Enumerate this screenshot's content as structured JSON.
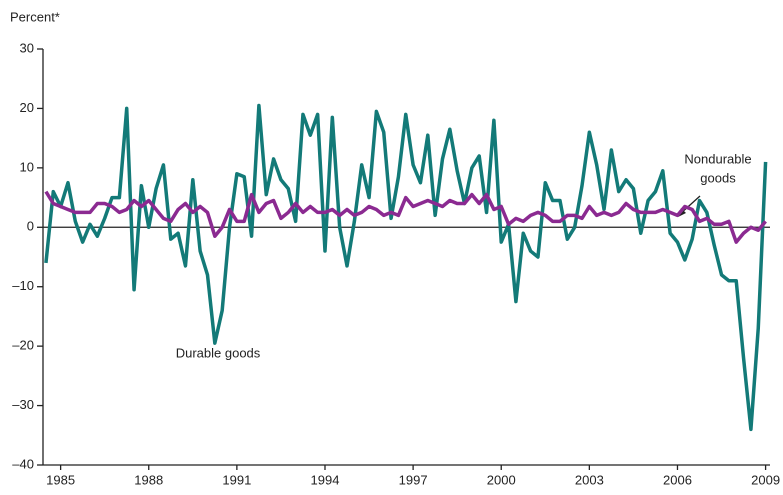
{
  "chart_data": {
    "type": "line",
    "y_label": "Percent*",
    "xlim": [
      1984.4,
      2009.15
    ],
    "xticks": [
      1985,
      1988,
      1991,
      1994,
      1997,
      2000,
      2003,
      2006,
      2009
    ],
    "ylim": [
      -40,
      30
    ],
    "yticks": [
      {
        "value": -40,
        "label": "–40"
      },
      {
        "value": -30,
        "label": "–30"
      },
      {
        "value": -20,
        "label": "–20"
      },
      {
        "value": -10,
        "label": "–10"
      },
      0,
      10,
      20,
      30
    ],
    "x": [
      1984.5,
      1984.75,
      1985,
      1985.25,
      1985.5,
      1985.75,
      1986,
      1986.25,
      1986.5,
      1986.75,
      1987,
      1987.25,
      1987.5,
      1987.75,
      1988,
      1988.25,
      1988.5,
      1988.75,
      1989,
      1989.25,
      1989.5,
      1989.75,
      1990,
      1990.25,
      1990.5,
      1990.75,
      1991,
      1991.25,
      1991.5,
      1991.75,
      1992,
      1992.25,
      1992.5,
      1992.75,
      1993,
      1993.25,
      1993.5,
      1993.75,
      1994,
      1994.25,
      1994.5,
      1994.75,
      1995,
      1995.25,
      1995.5,
      1995.75,
      1996,
      1996.25,
      1996.5,
      1996.75,
      1997,
      1997.25,
      1997.5,
      1997.75,
      1998,
      1998.25,
      1998.5,
      1998.75,
      1999,
      1999.25,
      1999.5,
      1999.75,
      2000,
      2000.25,
      2000.5,
      2000.75,
      2001,
      2001.25,
      2001.5,
      2001.75,
      2002,
      2002.25,
      2002.5,
      2002.75,
      2003,
      2003.25,
      2003.5,
      2003.75,
      2004,
      2004.25,
      2004.5,
      2004.75,
      2005,
      2005.25,
      2005.5,
      2005.75,
      2006,
      2006.25,
      2006.5,
      2006.75,
      2007,
      2007.25,
      2007.5,
      2007.75,
      2008,
      2008.25,
      2008.5,
      2008.75,
      2009
    ],
    "series": [
      {
        "name": "Durable goods",
        "color": "#137a78",
        "values": [
          -6,
          6,
          3.5,
          7.5,
          1,
          -2.5,
          0.5,
          -1.5,
          1.5,
          5,
          5,
          20,
          -10.5,
          7,
          0,
          6.5,
          10.5,
          -2,
          -1,
          -6.5,
          8,
          -4,
          -8,
          -19.5,
          -14,
          0,
          9,
          8.5,
          -1.5,
          20.5,
          5.5,
          11.5,
          8,
          6.5,
          1,
          19,
          15.5,
          19,
          -4,
          18.5,
          0,
          -6.5,
          1,
          10.5,
          5,
          19.5,
          16,
          1.5,
          8.5,
          19,
          10.5,
          7.5,
          15.5,
          2,
          11.5,
          16.5,
          9.5,
          4,
          10,
          12,
          2.5,
          18,
          -2.5,
          0.5,
          -12.5,
          -1,
          -4,
          -5,
          7.5,
          4.5,
          4.5,
          -2,
          0,
          7,
          16,
          10.5,
          3,
          13,
          6,
          8,
          6.5,
          -1,
          4.5,
          6,
          9.5,
          -1,
          -2.5,
          -5.5,
          -2,
          4.5,
          2.5,
          -3,
          -8,
          -9,
          -9,
          -22,
          -34,
          -17,
          11
        ]
      },
      {
        "name": "Nondurable goods",
        "color": "#8b2a91",
        "values": [
          6,
          4,
          3.5,
          3,
          2.5,
          2.5,
          2.5,
          4,
          4,
          3.5,
          2.5,
          3,
          4.5,
          3.5,
          4.5,
          3,
          1.5,
          1,
          3,
          4,
          2.5,
          3.5,
          2.5,
          -1.5,
          0,
          3,
          1,
          1,
          5.5,
          2.5,
          4,
          4.5,
          1.5,
          2.5,
          4,
          2.5,
          3.5,
          2.5,
          2.5,
          3,
          2,
          3,
          2,
          2.5,
          3.5,
          3,
          2,
          2.5,
          2,
          5,
          3.5,
          4,
          4.5,
          4,
          3.5,
          4.5,
          4,
          4,
          5.5,
          4,
          5.5,
          3,
          3.5,
          0.5,
          1.5,
          1,
          2,
          2.5,
          2,
          1,
          1,
          2,
          2,
          1.5,
          3.5,
          2,
          2.5,
          2,
          2.5,
          4,
          3,
          2.5,
          2.5,
          2.5,
          3,
          2.5,
          2,
          3.5,
          3,
          1,
          1.5,
          0.5,
          0.5,
          1,
          -2.5,
          -1,
          0,
          -0.5,
          1
        ]
      }
    ],
    "annotations": [
      [
        "Durable goods"
      ],
      [
        "Nondurable",
        "goods"
      ]
    ]
  }
}
